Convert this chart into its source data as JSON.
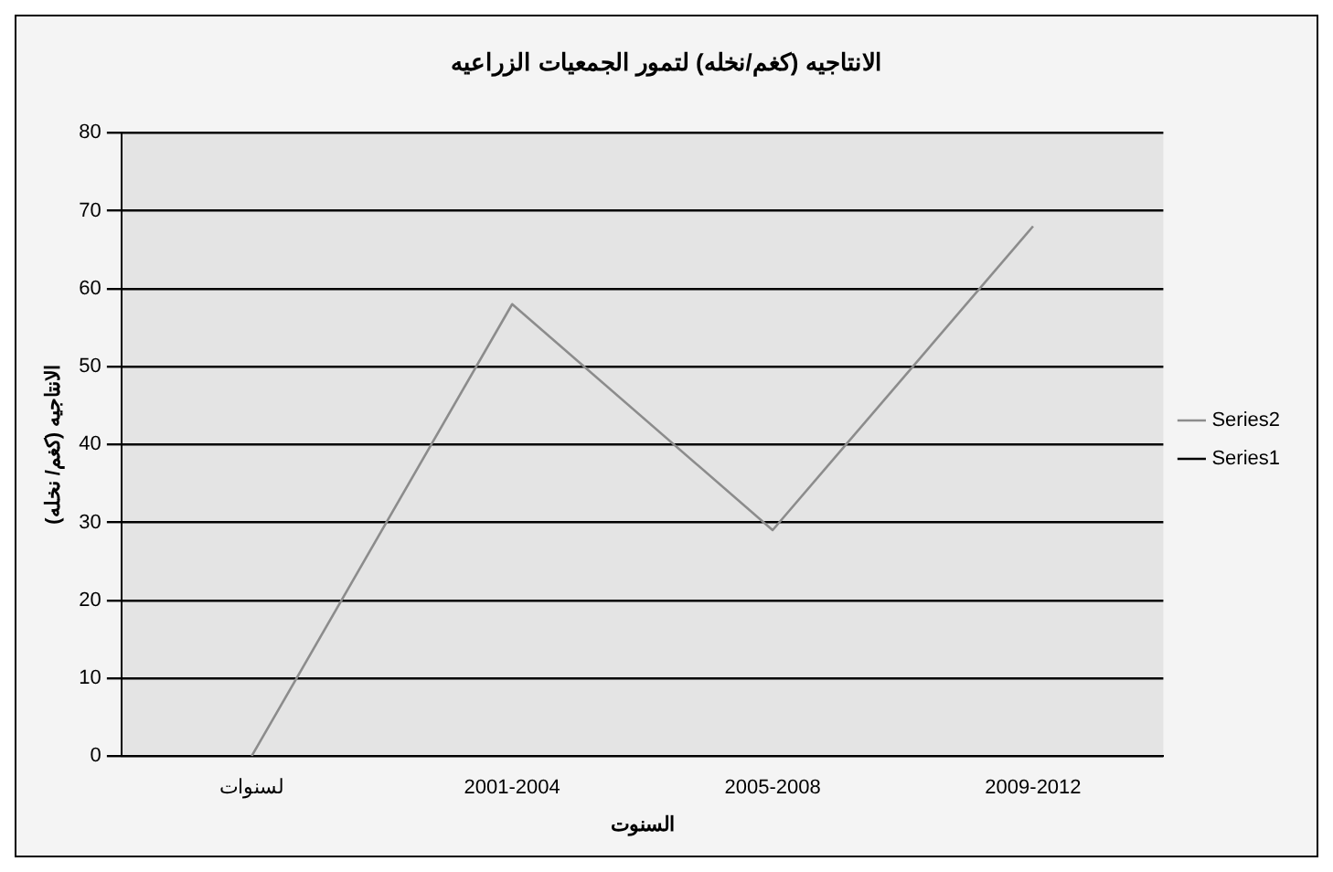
{
  "chart_data": {
    "type": "line",
    "title": "الانتاجيه (كغم/نخله) لتمور الجمعيات الزراعيه",
    "xlabel": "السنوت",
    "ylabel": "الانتاجيه (كغم/ نخله)",
    "categories": [
      "لسنوات",
      "2001-2004",
      "2005-2008",
      "2009-2012"
    ],
    "series": [
      {
        "name": "Series2",
        "color": "#8c8c8c",
        "values": [
          0,
          58,
          29,
          68
        ]
      },
      {
        "name": "Series1",
        "color": "#000000",
        "values": [
          null,
          null,
          null,
          null
        ]
      }
    ],
    "ylim": [
      0,
      80
    ],
    "yticks": [
      0,
      10,
      20,
      30,
      40,
      50,
      60,
      70,
      80
    ],
    "grid": "y",
    "legend": "right",
    "marker": "none"
  }
}
